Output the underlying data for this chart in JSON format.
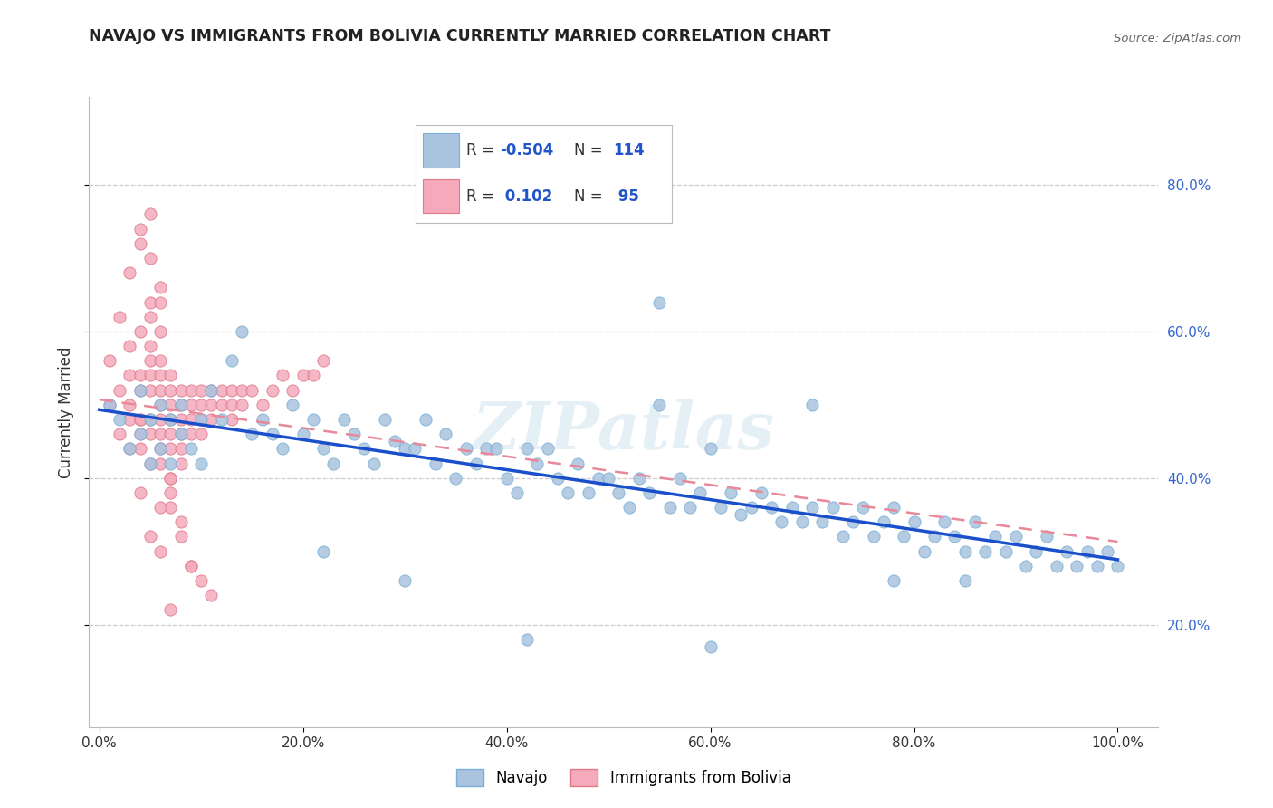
{
  "title": "NAVAJO VS IMMIGRANTS FROM BOLIVIA CURRENTLY MARRIED CORRELATION CHART",
  "source_text": "Source: ZipAtlas.com",
  "ylabel": "Currently Married",
  "legend_r_values": [
    "-0.504",
    "0.102"
  ],
  "legend_n_values": [
    "114",
    "95"
  ],
  "x_ticks": [
    0.0,
    0.2,
    0.4,
    0.6,
    0.8,
    1.0
  ],
  "x_tick_labels": [
    "0.0%",
    "20.0%",
    "40.0%",
    "60.0%",
    "80.0%",
    "100.0%"
  ],
  "y_ticks": [
    0.2,
    0.4,
    0.6,
    0.8
  ],
  "y_tick_labels": [
    "20.0%",
    "40.0%",
    "60.0%",
    "80.0%"
  ],
  "xlim": [
    -0.01,
    1.04
  ],
  "ylim": [
    0.06,
    0.92
  ],
  "blue_color": "#aac4df",
  "pink_color": "#f4aabb",
  "blue_edge": "#7aafd4",
  "pink_edge": "#e07888",
  "blue_line_color": "#1a4fcc",
  "pink_line_color": "#e88898",
  "grid_color": "#cccccc",
  "background_color": "#ffffff",
  "watermark": "ZIPatlas",
  "navajo_x": [
    0.01,
    0.02,
    0.03,
    0.04,
    0.04,
    0.05,
    0.05,
    0.06,
    0.06,
    0.07,
    0.07,
    0.08,
    0.08,
    0.09,
    0.1,
    0.1,
    0.11,
    0.12,
    0.13,
    0.14,
    0.15,
    0.16,
    0.17,
    0.18,
    0.19,
    0.2,
    0.21,
    0.22,
    0.23,
    0.24,
    0.25,
    0.26,
    0.27,
    0.28,
    0.29,
    0.3,
    0.31,
    0.32,
    0.33,
    0.34,
    0.35,
    0.36,
    0.37,
    0.38,
    0.39,
    0.4,
    0.41,
    0.42,
    0.43,
    0.44,
    0.45,
    0.46,
    0.47,
    0.48,
    0.49,
    0.5,
    0.51,
    0.52,
    0.53,
    0.54,
    0.55,
    0.56,
    0.57,
    0.58,
    0.59,
    0.6,
    0.61,
    0.62,
    0.63,
    0.64,
    0.65,
    0.66,
    0.67,
    0.68,
    0.69,
    0.7,
    0.71,
    0.72,
    0.73,
    0.74,
    0.75,
    0.76,
    0.77,
    0.78,
    0.79,
    0.8,
    0.81,
    0.82,
    0.83,
    0.84,
    0.85,
    0.86,
    0.87,
    0.88,
    0.89,
    0.9,
    0.91,
    0.92,
    0.93,
    0.94,
    0.95,
    0.96,
    0.97,
    0.98,
    0.99,
    1.0,
    0.3,
    0.55,
    0.7,
    0.85,
    0.42,
    0.6,
    0.78,
    0.22
  ],
  "navajo_y": [
    0.5,
    0.48,
    0.44,
    0.52,
    0.46,
    0.48,
    0.42,
    0.5,
    0.44,
    0.48,
    0.42,
    0.46,
    0.5,
    0.44,
    0.48,
    0.42,
    0.52,
    0.48,
    0.56,
    0.6,
    0.46,
    0.48,
    0.46,
    0.44,
    0.5,
    0.46,
    0.48,
    0.44,
    0.42,
    0.48,
    0.46,
    0.44,
    0.42,
    0.48,
    0.45,
    0.44,
    0.44,
    0.48,
    0.42,
    0.46,
    0.4,
    0.44,
    0.42,
    0.44,
    0.44,
    0.4,
    0.38,
    0.44,
    0.42,
    0.44,
    0.4,
    0.38,
    0.42,
    0.38,
    0.4,
    0.4,
    0.38,
    0.36,
    0.4,
    0.38,
    0.64,
    0.36,
    0.4,
    0.36,
    0.38,
    0.44,
    0.36,
    0.38,
    0.35,
    0.36,
    0.38,
    0.36,
    0.34,
    0.36,
    0.34,
    0.36,
    0.34,
    0.36,
    0.32,
    0.34,
    0.36,
    0.32,
    0.34,
    0.36,
    0.32,
    0.34,
    0.3,
    0.32,
    0.34,
    0.32,
    0.3,
    0.34,
    0.3,
    0.32,
    0.3,
    0.32,
    0.28,
    0.3,
    0.32,
    0.28,
    0.3,
    0.28,
    0.3,
    0.28,
    0.3,
    0.28,
    0.26,
    0.5,
    0.5,
    0.26,
    0.18,
    0.17,
    0.26,
    0.3
  ],
  "bolivia_x": [
    0.01,
    0.01,
    0.02,
    0.02,
    0.02,
    0.03,
    0.03,
    0.03,
    0.03,
    0.04,
    0.04,
    0.04,
    0.04,
    0.04,
    0.04,
    0.05,
    0.05,
    0.05,
    0.05,
    0.05,
    0.05,
    0.05,
    0.06,
    0.06,
    0.06,
    0.06,
    0.06,
    0.06,
    0.06,
    0.06,
    0.07,
    0.07,
    0.07,
    0.07,
    0.07,
    0.07,
    0.07,
    0.08,
    0.08,
    0.08,
    0.08,
    0.08,
    0.09,
    0.09,
    0.09,
    0.09,
    0.1,
    0.1,
    0.1,
    0.1,
    0.11,
    0.11,
    0.11,
    0.12,
    0.12,
    0.13,
    0.13,
    0.13,
    0.14,
    0.14,
    0.15,
    0.16,
    0.17,
    0.18,
    0.19,
    0.2,
    0.21,
    0.22,
    0.05,
    0.06,
    0.04,
    0.07,
    0.03,
    0.05,
    0.06,
    0.08,
    0.04,
    0.06,
    0.07,
    0.05,
    0.08,
    0.09,
    0.1,
    0.11,
    0.07,
    0.04,
    0.05,
    0.06,
    0.03,
    0.04,
    0.05,
    0.06,
    0.07,
    0.08,
    0.09
  ],
  "bolivia_y": [
    0.5,
    0.56,
    0.52,
    0.46,
    0.62,
    0.5,
    0.54,
    0.48,
    0.58,
    0.52,
    0.48,
    0.54,
    0.46,
    0.6,
    0.44,
    0.52,
    0.48,
    0.54,
    0.46,
    0.56,
    0.42,
    0.64,
    0.52,
    0.5,
    0.48,
    0.46,
    0.54,
    0.44,
    0.56,
    0.42,
    0.52,
    0.5,
    0.48,
    0.46,
    0.54,
    0.44,
    0.4,
    0.52,
    0.5,
    0.48,
    0.46,
    0.44,
    0.52,
    0.5,
    0.48,
    0.46,
    0.52,
    0.5,
    0.48,
    0.46,
    0.52,
    0.5,
    0.48,
    0.52,
    0.5,
    0.52,
    0.5,
    0.48,
    0.52,
    0.5,
    0.52,
    0.5,
    0.52,
    0.54,
    0.52,
    0.54,
    0.54,
    0.56,
    0.7,
    0.64,
    0.72,
    0.38,
    0.68,
    0.62,
    0.6,
    0.34,
    0.74,
    0.66,
    0.36,
    0.76,
    0.32,
    0.28,
    0.26,
    0.24,
    0.4,
    0.48,
    0.58,
    0.3,
    0.44,
    0.38,
    0.32,
    0.36,
    0.22,
    0.42,
    0.28
  ]
}
